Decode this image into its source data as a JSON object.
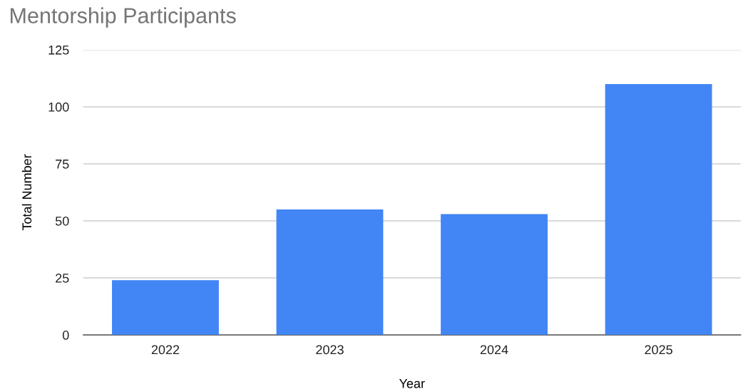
{
  "chart_data": {
    "type": "bar",
    "title": "Mentorship Participants",
    "xlabel": "Year",
    "ylabel": "Total Number",
    "categories": [
      "2022",
      "2023",
      "2024",
      "2025"
    ],
    "values": [
      24,
      55,
      53,
      110
    ],
    "color": "#4285f4",
    "ylim": [
      0,
      125
    ],
    "yticks": [
      0,
      25,
      50,
      75,
      100,
      125
    ],
    "grid": "y",
    "legend": false
  }
}
